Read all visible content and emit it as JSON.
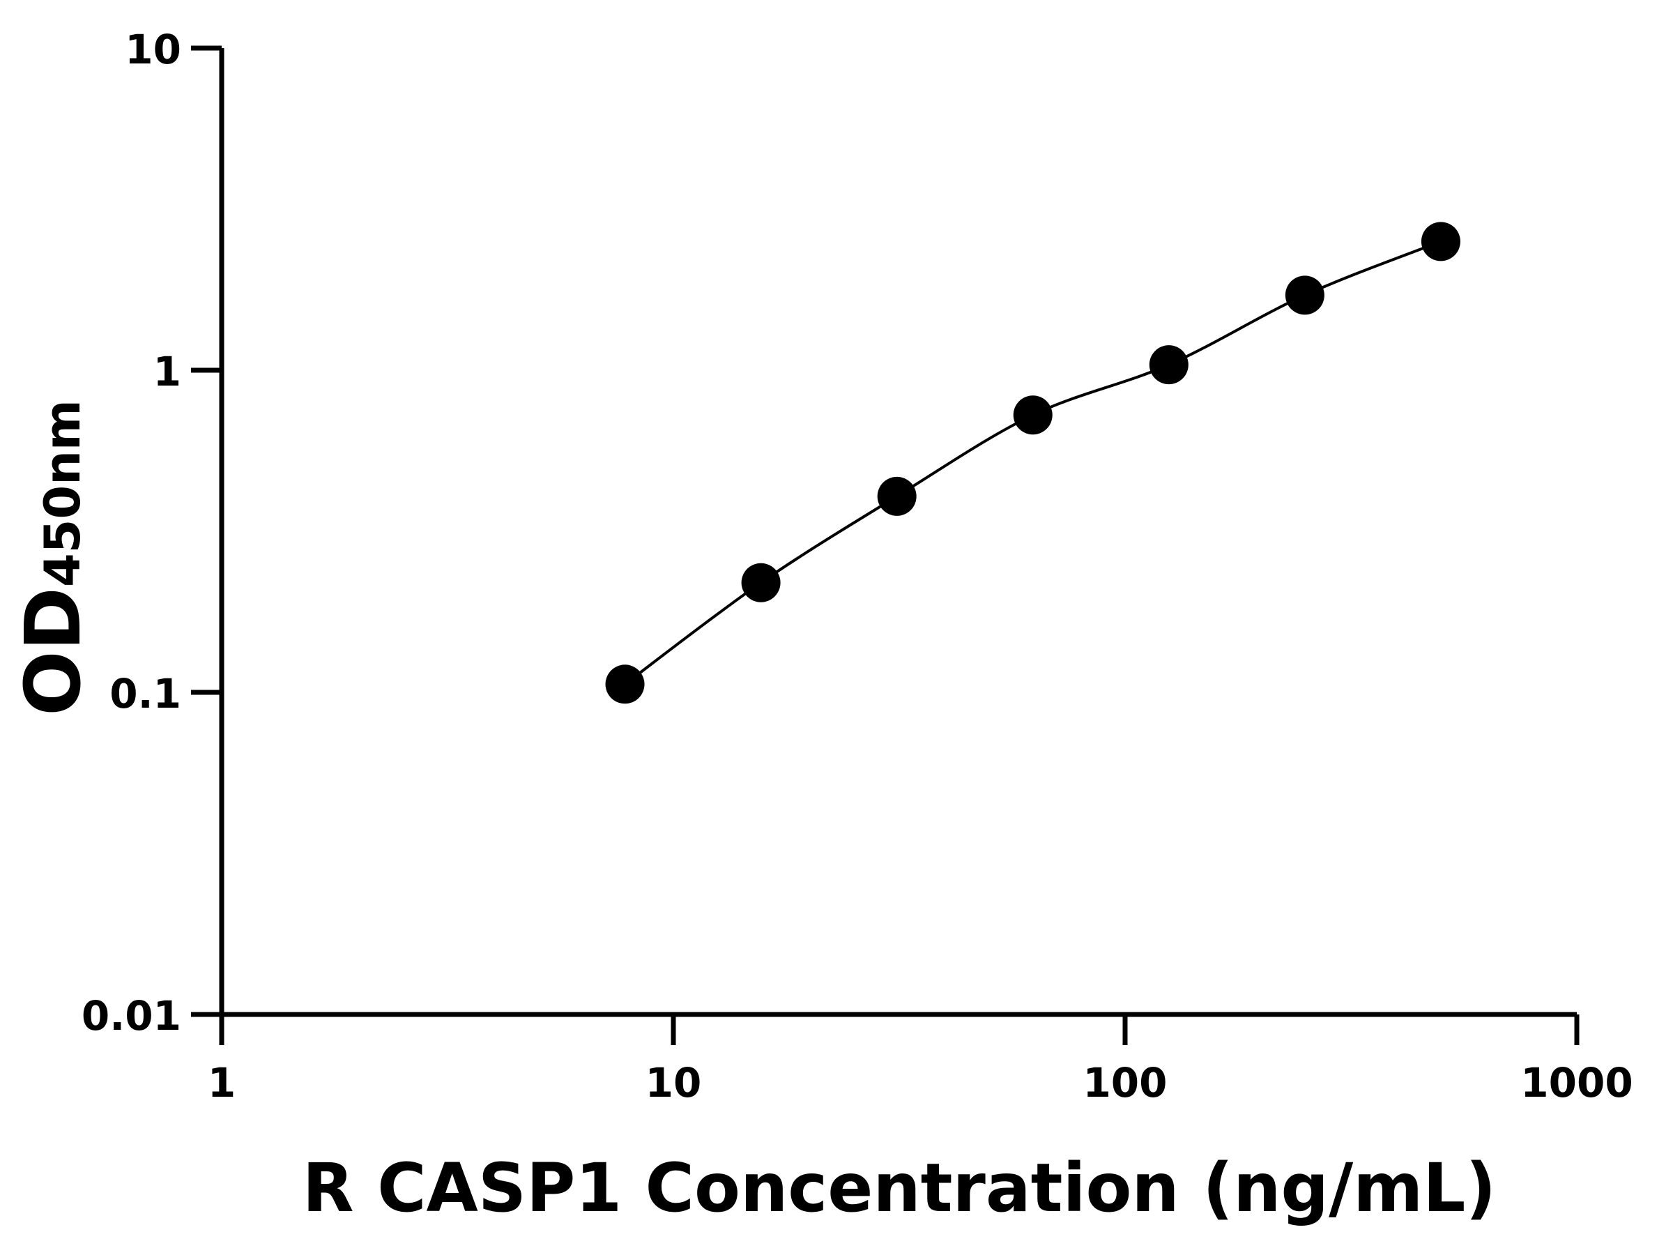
{
  "chart_data": {
    "type": "scatter",
    "title": "",
    "xlabel": "R CASP1 Concentration (ng/mL)",
    "ylabel": {
      "main": "OD",
      "subscript": "450nm"
    },
    "x_scale": "log",
    "y_scale": "log",
    "xlim": [
      1,
      1000
    ],
    "ylim": [
      0.01,
      10
    ],
    "x_ticks": [
      {
        "value": 1,
        "label": "1"
      },
      {
        "value": 10,
        "label": "10"
      },
      {
        "value": 100,
        "label": "100"
      },
      {
        "value": 1000,
        "label": "1000"
      }
    ],
    "y_ticks": [
      {
        "value": 0.01,
        "label": "0.01"
      },
      {
        "value": 0.1,
        "label": "0.1"
      },
      {
        "value": 1,
        "label": "1"
      },
      {
        "value": 10,
        "label": "10"
      }
    ],
    "grid": false,
    "fit_curve": true,
    "color": "#000000",
    "series": [
      {
        "x": [
          7.8125,
          15.625,
          31.25,
          62.5,
          125,
          250,
          500
        ],
        "y": [
          0.106,
          0.219,
          0.406,
          0.726,
          1.04,
          1.71,
          2.51
        ]
      }
    ]
  }
}
